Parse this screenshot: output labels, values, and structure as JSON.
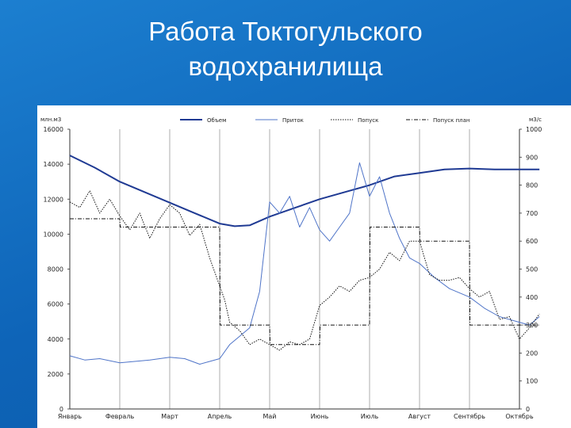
{
  "slide": {
    "title_line1": "Работа Токтогульского",
    "title_line2": "водохранилища",
    "background_color": "#0e64b8"
  },
  "chart_data": {
    "type": "line",
    "title": "",
    "ylabel_left": "млн.м3",
    "ylabel_right": "м3/с",
    "ylim_left": [
      0,
      16000
    ],
    "ylim_right": [
      0,
      1000
    ],
    "yticks_left": [
      0,
      2000,
      4000,
      6000,
      8000,
      10000,
      12000,
      14000,
      16000
    ],
    "yticks_right": [
      0,
      100,
      200,
      300,
      400,
      500,
      600,
      700,
      800,
      900,
      1000
    ],
    "grid": "vertical",
    "legend_position": "top",
    "x_labels": [
      "Январь",
      "Февраль",
      "Март",
      "Апрель",
      "Май",
      "Июнь",
      "Июль",
      "Август",
      "Сентябрь",
      "Октябрь"
    ],
    "series": [
      {
        "name": "Объем",
        "axis": "left",
        "color": "#1f3a93",
        "style": "solid-thick",
        "x": [
          0,
          0.5,
          1,
          1.5,
          2,
          2.5,
          3,
          3.3,
          3.6,
          4,
          4.5,
          5,
          5.5,
          6,
          6.5,
          7,
          7.5,
          8,
          8.5,
          9,
          9.4
        ],
        "y": [
          14500,
          13800,
          13000,
          12400,
          11800,
          11200,
          10600,
          10450,
          10500,
          11000,
          11500,
          12000,
          12400,
          12800,
          13300,
          13500,
          13700,
          13750,
          13700,
          13700,
          13700
        ]
      },
      {
        "name": "Приток",
        "axis": "right",
        "color": "#4f74c8",
        "style": "solid",
        "x": [
          0,
          0.3,
          0.6,
          1,
          1.3,
          1.6,
          2,
          2.3,
          2.6,
          2.8,
          3,
          3.2,
          3.4,
          3.6,
          3.8,
          4,
          4.2,
          4.4,
          4.6,
          4.8,
          5,
          5.2,
          5.4,
          5.6,
          5.8,
          6,
          6.2,
          6.4,
          6.6,
          6.8,
          7,
          7.3,
          7.6,
          8,
          8.3,
          8.6,
          9,
          9.2,
          9.4
        ],
        "y": [
          190,
          175,
          180,
          165,
          170,
          175,
          185,
          180,
          160,
          170,
          180,
          230,
          260,
          290,
          420,
          740,
          700,
          760,
          650,
          720,
          640,
          600,
          650,
          700,
          880,
          760,
          830,
          700,
          610,
          540,
          520,
          470,
          430,
          400,
          360,
          330,
          310,
          300,
          330
        ]
      },
      {
        "name": "Попуск",
        "axis": "right",
        "color": "#111111",
        "style": "dotted",
        "x": [
          0,
          0.2,
          0.4,
          0.6,
          0.8,
          1,
          1.2,
          1.4,
          1.6,
          1.8,
          2,
          2.2,
          2.4,
          2.6,
          2.8,
          3,
          3.1,
          3.2,
          3.4,
          3.6,
          3.8,
          4,
          4.2,
          4.4,
          4.6,
          4.8,
          5,
          5.2,
          5.4,
          5.6,
          5.8,
          6,
          6.2,
          6.4,
          6.6,
          6.8,
          7,
          7.2,
          7.4,
          7.6,
          7.8,
          8,
          8.2,
          8.4,
          8.6,
          8.8,
          9,
          9.2,
          9.4
        ],
        "y": [
          740,
          720,
          780,
          700,
          750,
          690,
          640,
          700,
          610,
          680,
          730,
          700,
          620,
          660,
          540,
          440,
          390,
          310,
          280,
          230,
          250,
          230,
          210,
          240,
          230,
          250,
          370,
          400,
          440,
          420,
          460,
          470,
          500,
          560,
          530,
          600,
          600,
          480,
          460,
          460,
          470,
          430,
          400,
          420,
          320,
          330,
          250,
          290,
          340
        ]
      },
      {
        "name": "Попуск план",
        "axis": "right",
        "color": "#111111",
        "style": "dash-dot",
        "x": [
          0,
          1,
          1.01,
          2,
          2.01,
          3,
          3.01,
          4,
          4.01,
          5,
          5.01,
          6,
          6.01,
          7,
          7.01,
          8,
          8.01,
          9,
          9.01,
          9.4
        ],
        "y": [
          680,
          680,
          650,
          650,
          650,
          650,
          300,
          300,
          230,
          230,
          300,
          300,
          650,
          650,
          600,
          600,
          300,
          300,
          300,
          300
        ]
      }
    ]
  }
}
